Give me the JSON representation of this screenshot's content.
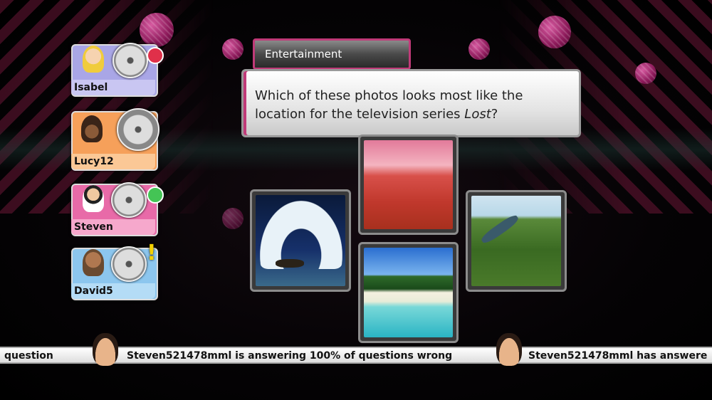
{
  "category": "Entertainment",
  "question": {
    "part1": "Which of these photos looks most like the location for the television series ",
    "emphasis": "Lost",
    "part2": "?"
  },
  "players": [
    {
      "name": "Isabel",
      "color": "#a9a6e6",
      "status": "red"
    },
    {
      "name": "Lucy12",
      "color": "#f6a05a",
      "status": "none"
    },
    {
      "name": "Steven",
      "color": "#e86aa8",
      "status": "green"
    },
    {
      "name": "David5",
      "color": "#8cc6ee",
      "status": "alert"
    }
  ],
  "answers": [
    {
      "name": "iceberg-arch"
    },
    {
      "name": "red-desert-dunes"
    },
    {
      "name": "tropical-beach"
    },
    {
      "name": "jungle-river"
    }
  ],
  "ticker": {
    "msg1": "question",
    "msg2": "Steven521478mml is answering 100% of questions wrong",
    "msg3": "Steven521478mml has answere"
  },
  "colors": {
    "accent": "#c03a78",
    "status_red": "#e0304a",
    "status_green": "#44c455",
    "alert": "#f4d000"
  }
}
